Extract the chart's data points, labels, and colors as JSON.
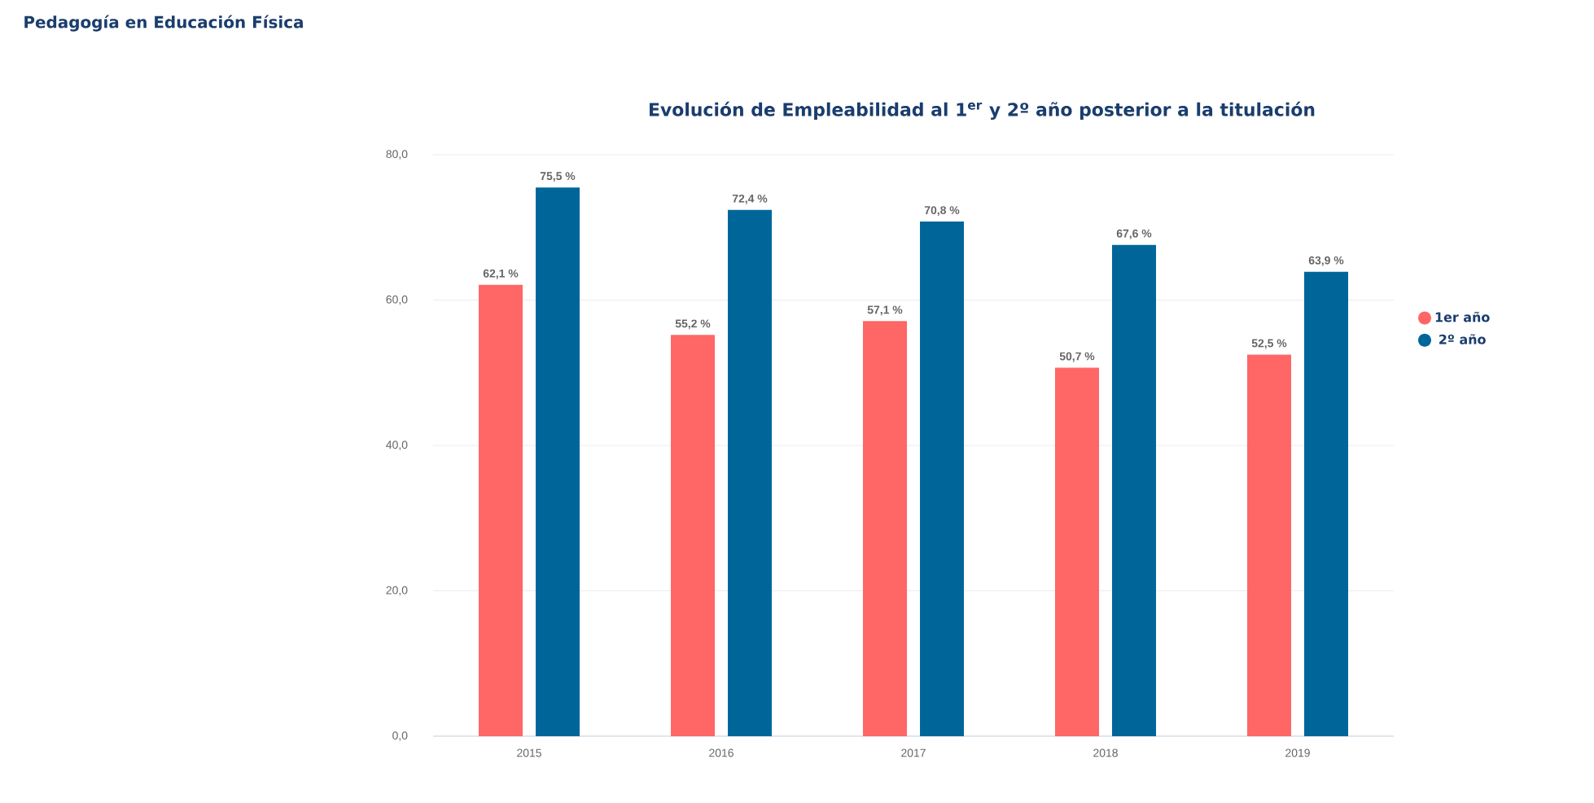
{
  "chart_data": {
    "type": "bar",
    "title": "Pedagogía en Educación Física",
    "subtitle": "Evolución de Empleabilidad al 1$^{er}$ y 2º año posterior a la titulación",
    "categories": [
      "2015",
      "2016",
      "2017",
      "2018",
      "2019"
    ],
    "series": [
      {
        "name": "1er año",
        "color": "#ff6666",
        "values": [
          62.1,
          55.2,
          57.1,
          50.7,
          52.5
        ],
        "value_labels": [
          "62,1 %",
          "55,2 %",
          "57,1 %",
          "50,7 %",
          "52,5 %"
        ]
      },
      {
        "name": "2º año",
        "color": "#006699",
        "values": [
          75.5,
          72.4,
          70.8,
          67.6,
          63.9
        ],
        "value_labels": [
          "75,5 %",
          "72,4 %",
          "70,8 %",
          "67,6 %",
          "63,9 %"
        ]
      }
    ],
    "ylim": [
      0,
      80
    ],
    "yticks": [
      {
        "value": 0,
        "label": "0,0"
      },
      {
        "value": 20,
        "label": "20,0"
      },
      {
        "value": 40,
        "label": "40,0"
      },
      {
        "value": 60,
        "label": "60,0"
      },
      {
        "value": 80,
        "label": "80,0"
      }
    ],
    "grid": "y",
    "legend": "right"
  }
}
